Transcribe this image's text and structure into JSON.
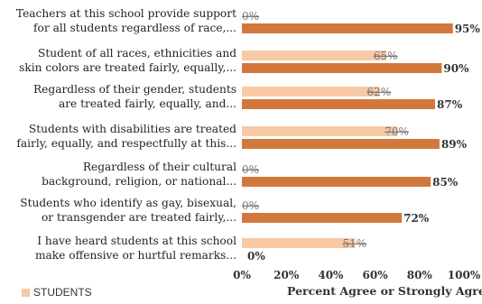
{
  "chart_data": {
    "type": "bar",
    "orientation": "horizontal",
    "categories": [
      [
        "Teachers at this school provide support",
        "for all students regardless of race,..."
      ],
      [
        "Student of all races, ethnicities and",
        "skin colors are treated fairly, equally,..."
      ],
      [
        "Regardless of their gender, students",
        "are treated fairly, equally, and..."
      ],
      [
        "Students with disabilities are treated",
        "fairly, equally, and respectfully at this..."
      ],
      [
        "Regardless of their cultural",
        "background, religion, or national..."
      ],
      [
        "Students who identify as gay, bisexual,",
        "or transgender are treated fairly,..."
      ],
      [
        "I have heard students at this school",
        "make offensive or hurtful remarks..."
      ]
    ],
    "series": [
      {
        "name": "STUDENTS",
        "color": "#f8c9a5",
        "values": [
          0,
          65,
          62,
          70,
          0,
          0,
          51
        ],
        "labels": [
          "0%",
          "65%",
          "62%",
          "70%",
          "0%",
          "0%",
          "51%"
        ]
      },
      {
        "name": "",
        "color": "#d2783d",
        "values": [
          95,
          90,
          87,
          89,
          85,
          72,
          0
        ],
        "labels": [
          "95%",
          "90%",
          "87%",
          "89%",
          "85%",
          "72%",
          "0%"
        ]
      }
    ],
    "xlim": [
      0,
      100
    ],
    "xticks": [
      "0%",
      "20%",
      "40%",
      "60%",
      "80%",
      "100%"
    ],
    "xlabel": "Percent Agree or Strongly Agree",
    "legend": {
      "label": "STUDENTS",
      "position": "bottom-left"
    },
    "grid": false
  }
}
